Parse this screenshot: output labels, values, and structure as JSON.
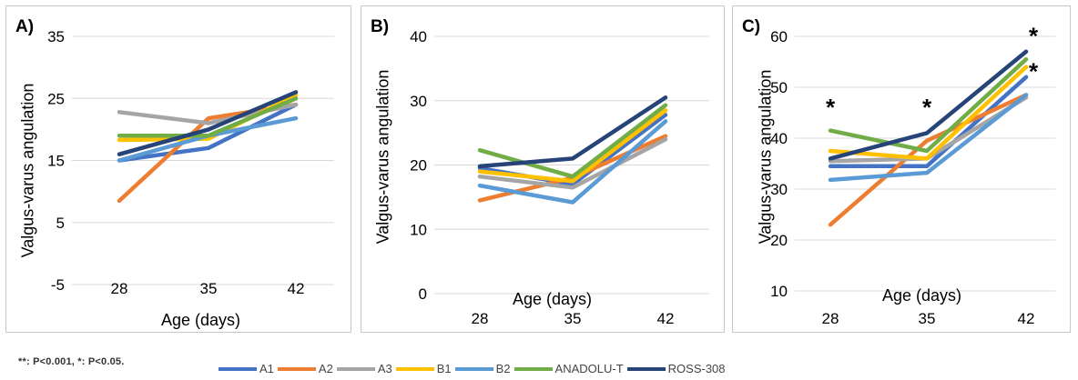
{
  "chart_data": [
    {
      "type": "line",
      "panel_label": "A)",
      "categories": [
        "28",
        "35",
        "42"
      ],
      "xlabel": "Age (days)",
      "ylabel": "Valgus-varus angulation",
      "ylim": [
        -5,
        35
      ],
      "yticks": [
        "-5",
        "5",
        "15",
        "25",
        "35"
      ],
      "grid": true,
      "series": [
        {
          "name": "A1",
          "values": [
            15,
            17,
            24
          ]
        },
        {
          "name": "A2",
          "values": [
            8.5,
            21.8,
            24
          ]
        },
        {
          "name": "A3",
          "values": [
            22.8,
            21,
            24
          ]
        },
        {
          "name": "B1",
          "values": [
            18.3,
            18.5,
            25.5
          ]
        },
        {
          "name": "B2",
          "values": [
            15,
            19,
            21.8
          ]
        },
        {
          "name": "ANADOLU-T",
          "values": [
            19,
            19,
            25
          ]
        },
        {
          "name": "ROSS-308",
          "values": [
            16,
            20,
            26
          ]
        }
      ],
      "annotations": []
    },
    {
      "type": "line",
      "panel_label": "B)",
      "categories": [
        "28",
        "35",
        "42"
      ],
      "xlabel": "Age (days)",
      "ylabel": "Valgus-varus angulation",
      "ylim": [
        0,
        40
      ],
      "yticks": [
        "0",
        "10",
        "20",
        "30",
        "40"
      ],
      "grid": true,
      "series": [
        {
          "name": "A1",
          "values": [
            19.5,
            17,
            27.8
          ]
        },
        {
          "name": "A2",
          "values": [
            14.5,
            18,
            24.5
          ]
        },
        {
          "name": "A3",
          "values": [
            18.2,
            16.5,
            24
          ]
        },
        {
          "name": "B1",
          "values": [
            19,
            17.5,
            28.5
          ]
        },
        {
          "name": "B2",
          "values": [
            16.8,
            14.2,
            26.8
          ]
        },
        {
          "name": "ANADOLU-T",
          "values": [
            22.3,
            18.2,
            29.3
          ]
        },
        {
          "name": "ROSS-308",
          "values": [
            19.8,
            21,
            30.5
          ]
        }
      ],
      "annotations": []
    },
    {
      "type": "line",
      "panel_label": "C)",
      "categories": [
        "28",
        "35",
        "42"
      ],
      "xlabel": "Age (days)",
      "ylabel": "Valgus-varus angulation",
      "ylim": [
        10,
        60
      ],
      "yticks": [
        "10",
        "20",
        "30",
        "40",
        "50",
        "60"
      ],
      "grid": true,
      "series": [
        {
          "name": "A1",
          "values": [
            34.5,
            34.5,
            52
          ]
        },
        {
          "name": "A2",
          "values": [
            23,
            39.5,
            48.5
          ]
        },
        {
          "name": "A3",
          "values": [
            35.5,
            36,
            48
          ]
        },
        {
          "name": "B1",
          "values": [
            37.5,
            36,
            54
          ]
        },
        {
          "name": "B2",
          "values": [
            31.8,
            33.2,
            48.5
          ]
        },
        {
          "name": "ANADOLU-T",
          "values": [
            41.5,
            37.5,
            55.5
          ]
        },
        {
          "name": "ROSS-308",
          "values": [
            36,
            41,
            57
          ]
        }
      ],
      "annotations": [
        {
          "text": "*",
          "x": "28",
          "y": 47
        },
        {
          "text": "*",
          "x": "35",
          "y": 47
        },
        {
          "text": "*",
          "x": "42",
          "y": 61
        },
        {
          "text": "*",
          "x": "42",
          "y": 54
        }
      ]
    }
  ],
  "colors": {
    "A1": "#4472c4",
    "A2": "#ed7d31",
    "A3": "#a5a5a5",
    "B1": "#ffc000",
    "B2": "#5b9bd5",
    "ANADOLU-T": "#70ad47",
    "ROSS-308": "#264478",
    "grid": "#d9d9d9"
  },
  "footnote": "**: P<0.001, *: P<0.05.",
  "legend": [
    "A1",
    "A2",
    "A3",
    "B1",
    "B2",
    "ANADOLU-T",
    "ROSS-308"
  ]
}
